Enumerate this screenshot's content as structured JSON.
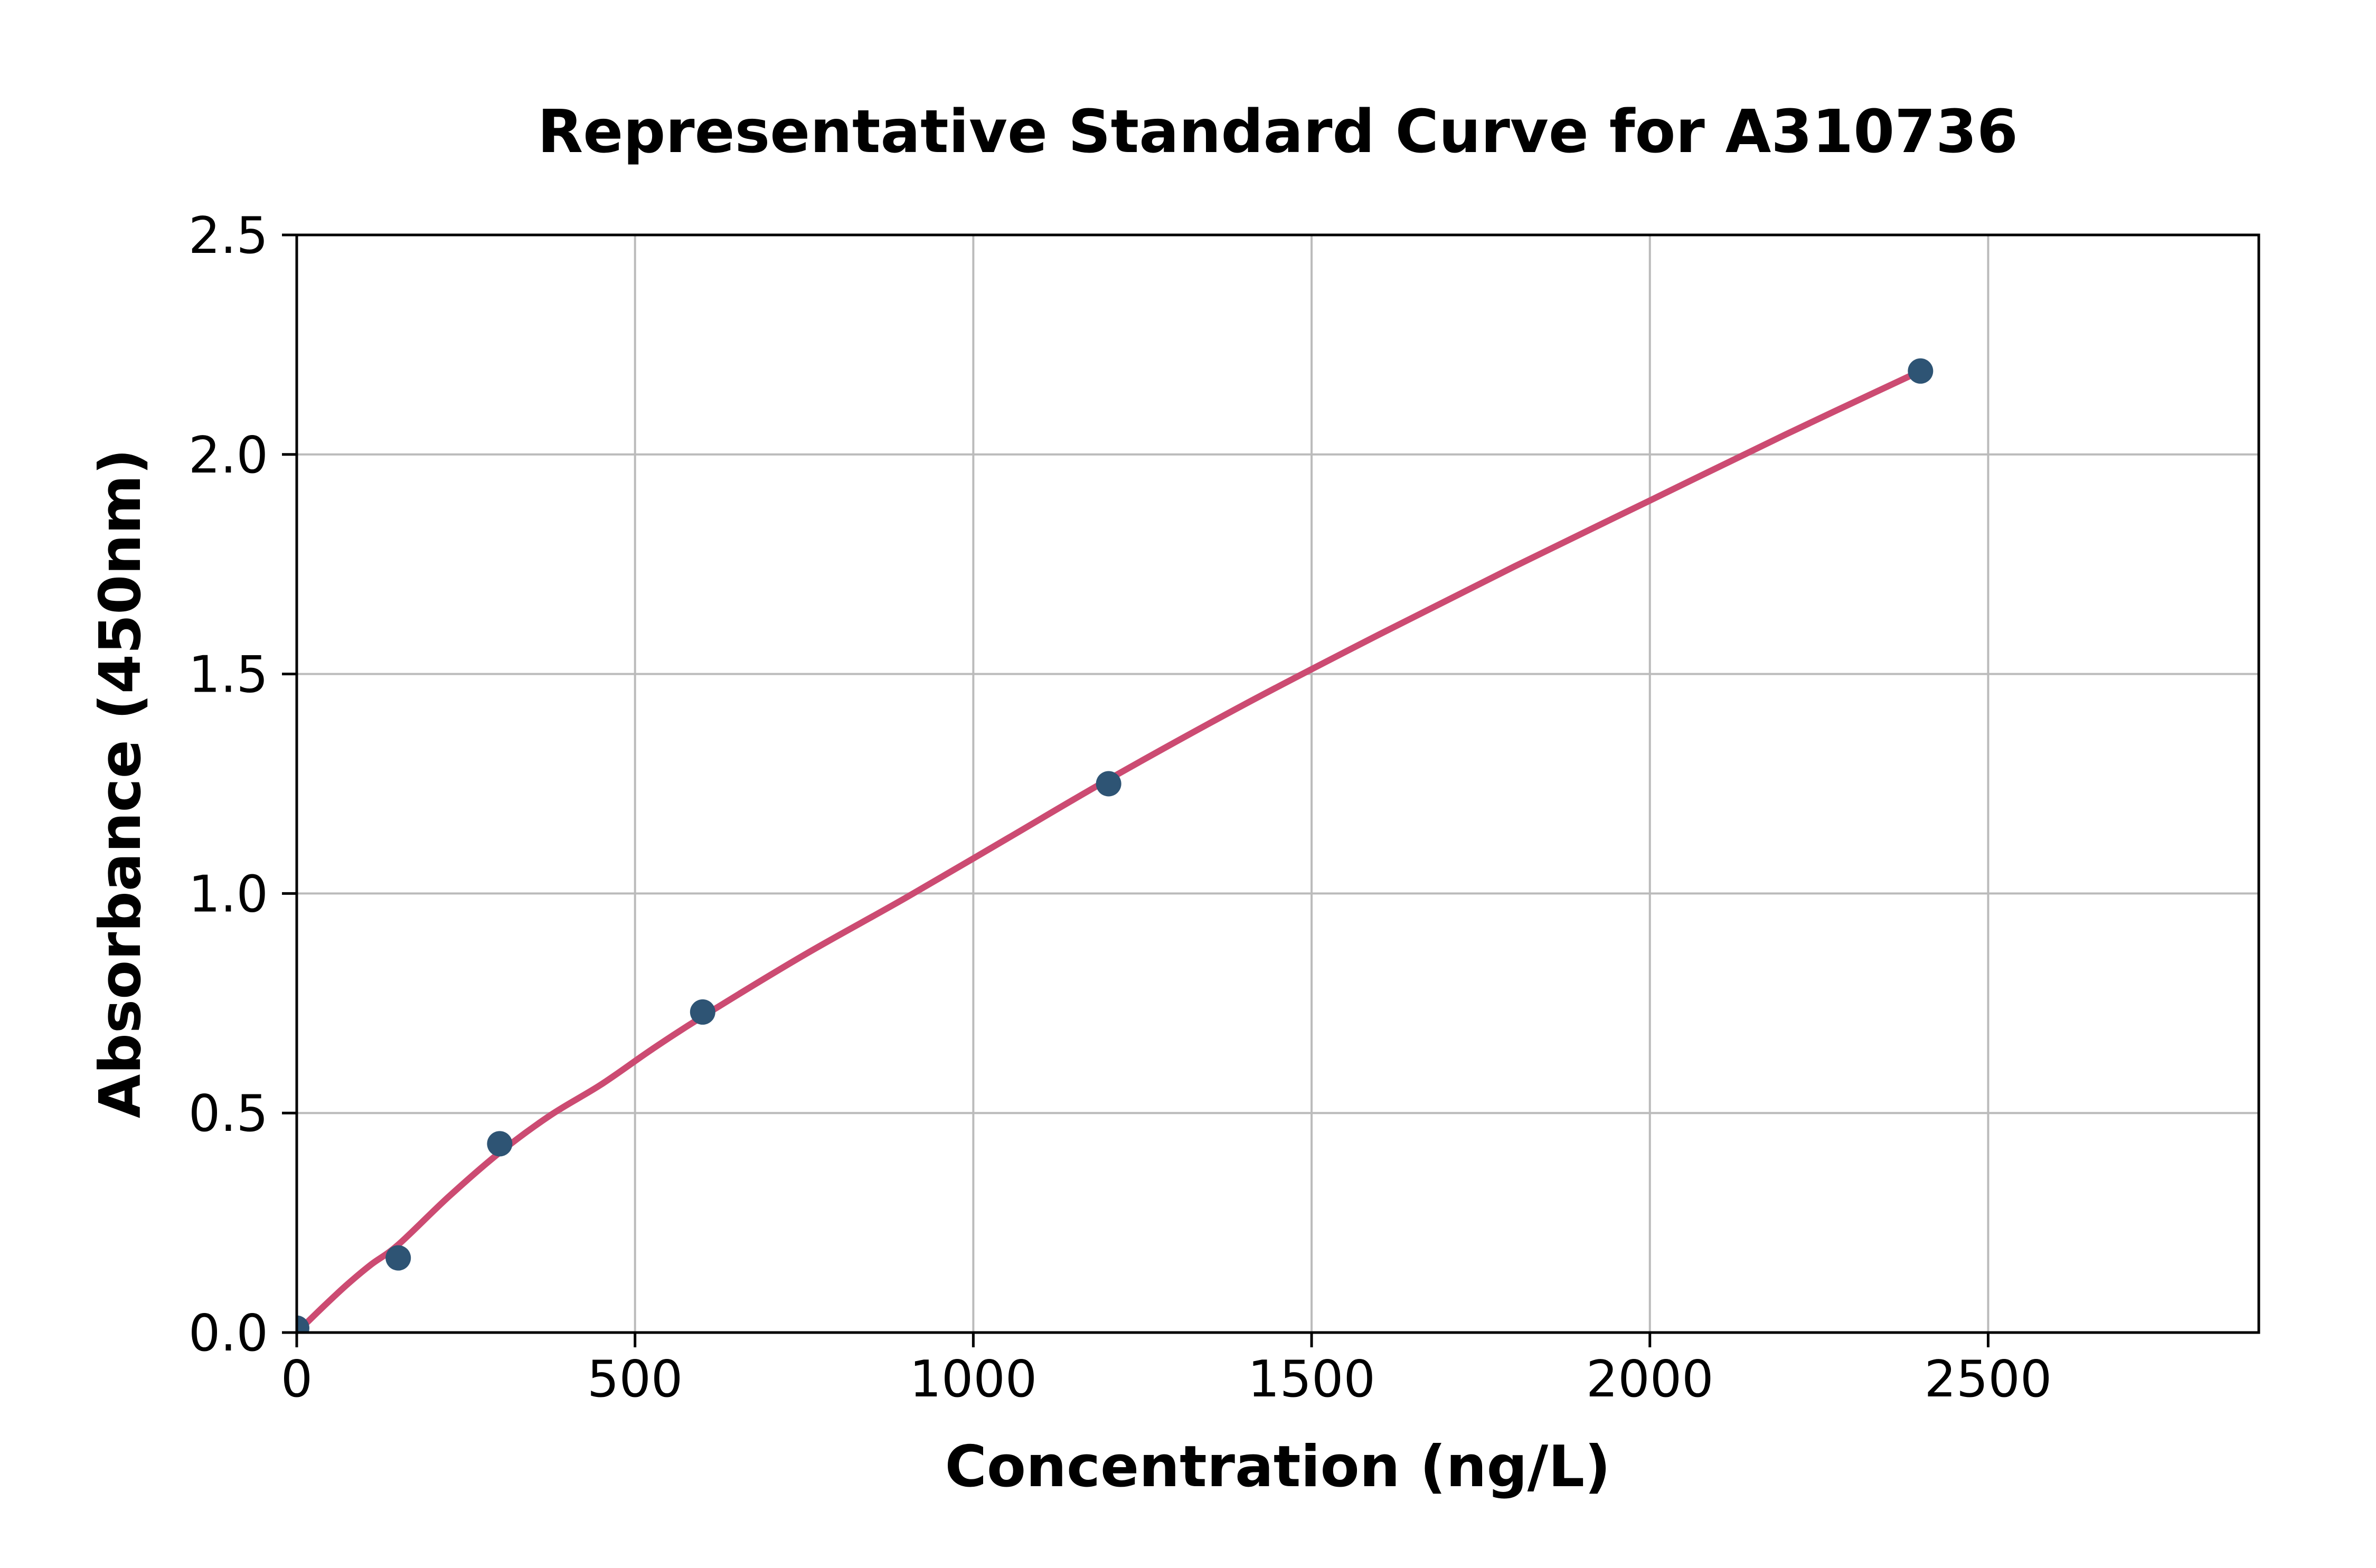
{
  "chart_data": {
    "type": "scatter",
    "title": "Representative Standard Curve for A310736",
    "xlabel": "Concentration (ng/L)",
    "ylabel": "Absorbance (450nm)",
    "xlim": [
      0,
      2900
    ],
    "ylim": [
      0,
      2.5
    ],
    "x_ticks": [
      0,
      500,
      1000,
      1500,
      2000,
      2500
    ],
    "x_tick_labels": [
      "0",
      "500",
      "1000",
      "1500",
      "2000",
      "2500"
    ],
    "y_ticks": [
      0.0,
      0.5,
      1.0,
      1.5,
      2.0,
      2.5
    ],
    "y_tick_labels": [
      "0.0",
      "0.5",
      "1.0",
      "1.5",
      "2.0",
      "2.5"
    ],
    "grid": true,
    "legend": false,
    "series": [
      {
        "name": "standard-points",
        "type": "scatter",
        "color": "#2e5474",
        "points": [
          [
            0,
            0.01
          ],
          [
            150,
            0.17
          ],
          [
            300,
            0.43
          ],
          [
            600,
            0.73
          ],
          [
            1200,
            1.25
          ],
          [
            2400,
            2.19
          ]
        ]
      },
      {
        "name": "fitted-curve",
        "type": "line",
        "color": "#cc4b72",
        "points": [
          [
            0,
            0.0
          ],
          [
            40,
            0.06
          ],
          [
            75,
            0.11
          ],
          [
            110,
            0.155
          ],
          [
            150,
            0.2
          ],
          [
            225,
            0.31
          ],
          [
            300,
            0.41
          ],
          [
            375,
            0.495
          ],
          [
            450,
            0.565
          ],
          [
            525,
            0.645
          ],
          [
            600,
            0.72
          ],
          [
            750,
            0.86
          ],
          [
            900,
            0.99
          ],
          [
            1050,
            1.125
          ],
          [
            1200,
            1.26
          ],
          [
            1400,
            1.43
          ],
          [
            1600,
            1.59
          ],
          [
            1800,
            1.745
          ],
          [
            2000,
            1.895
          ],
          [
            2200,
            2.045
          ],
          [
            2400,
            2.19
          ]
        ]
      }
    ],
    "colors": {
      "background": "#ffffff",
      "grid": "#bbbbbb",
      "spine": "#000000",
      "marker": "#2e5474",
      "curve": "#cc4b72"
    }
  }
}
